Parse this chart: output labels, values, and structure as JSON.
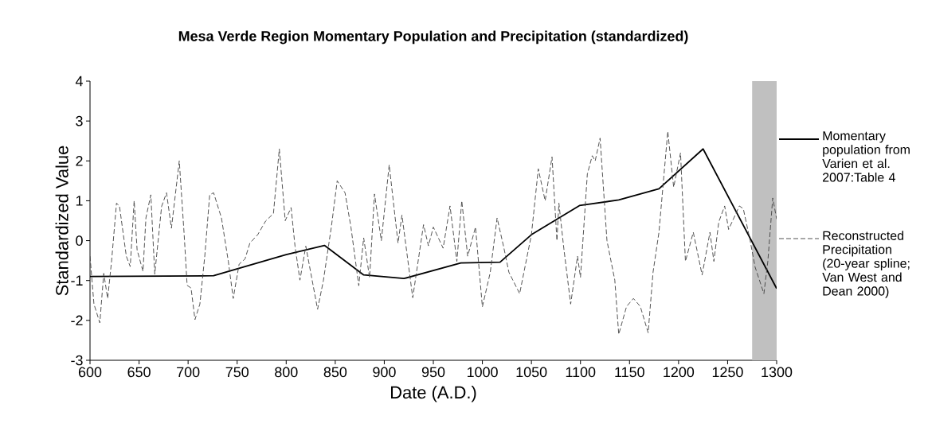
{
  "chart_data": {
    "type": "line",
    "title": "Mesa Verde Region Momentary Population and Precipitation (standardized)",
    "xlabel": "Date (A.D.)",
    "ylabel": "Standardized Value",
    "xlim": [
      600,
      1300
    ],
    "xticks": [
      600,
      650,
      700,
      750,
      800,
      850,
      900,
      950,
      1000,
      1050,
      1100,
      1150,
      1200,
      1250,
      1300
    ],
    "ylim": [
      -3,
      4
    ],
    "yticks": [
      -3,
      -2,
      -1,
      0,
      1,
      2,
      3,
      4
    ],
    "grid": false,
    "legend": "right",
    "marker": "none",
    "bands": [
      {
        "axis": "x",
        "from": 1275,
        "to": 1300,
        "color": "#c0c0c0"
      }
    ],
    "series": [
      {
        "name": "Momentary population from Varien et al. 2007:Table 4",
        "color": "#000000",
        "line_style": "solid",
        "x": [
          600,
          726,
          800,
          839,
          879,
          920,
          978,
          1018,
          1050,
          1099,
          1139,
          1180,
          1225,
          1300
        ],
        "values": [
          -0.9,
          -0.88,
          -0.35,
          -0.12,
          -0.86,
          -0.95,
          -0.56,
          -0.54,
          0.15,
          0.88,
          1.02,
          1.3,
          2.3,
          -1.2
        ]
      },
      {
        "name": "Reconstructed Precipitation (20-year spline; Van West and Dean 2000)",
        "color": "#404040",
        "line_style": "dashed",
        "x": [
          600,
          604,
          610,
          614,
          618,
          622,
          627,
          630,
          637,
          641,
          645,
          648,
          654,
          657,
          662,
          666,
          673,
          678,
          683,
          691,
          696,
          699,
          703,
          707,
          712,
          717,
          722,
          726,
          734,
          741,
          746,
          752,
          758,
          763,
          771,
          779,
          787,
          793,
          799,
          805,
          809,
          814,
          820,
          825,
          832,
          838,
          846,
          852,
          860,
          866,
          874,
          879,
          885,
          890,
          897,
          905,
          914,
          918,
          929,
          940,
          945,
          950,
          960,
          967,
          974,
          979,
          985,
          993,
          1000,
          1008,
          1015,
          1022,
          1027,
          1038,
          1050,
          1057,
          1064,
          1071,
          1076,
          1078,
          1083,
          1090,
          1097,
          1100,
          1107,
          1112,
          1115,
          1120,
          1127,
          1135,
          1139,
          1147,
          1154,
          1161,
          1169,
          1174,
          1180,
          1189,
          1195,
          1202,
          1207,
          1215,
          1224,
          1232,
          1236,
          1241,
          1247,
          1251,
          1262,
          1266,
          1273,
          1278,
          1287,
          1291,
          1296,
          1300
        ],
        "values": [
          -0.39,
          -1.59,
          -2.06,
          -0.82,
          -1.45,
          -0.51,
          0.94,
          0.87,
          -0.39,
          -0.65,
          1.0,
          -0.23,
          -0.77,
          0.57,
          1.15,
          -0.84,
          0.86,
          1.2,
          0.31,
          2.0,
          0.15,
          -1.12,
          -1.19,
          -1.98,
          -1.59,
          -0.39,
          1.15,
          1.2,
          0.57,
          -0.52,
          -1.45,
          -0.59,
          -0.46,
          -0.06,
          0.15,
          0.49,
          0.68,
          2.3,
          0.5,
          0.83,
          -0.14,
          -0.99,
          -0.14,
          -0.8,
          -1.72,
          -0.99,
          0.34,
          1.5,
          1.2,
          0.34,
          -1.13,
          0.07,
          -0.93,
          1.17,
          0.0,
          1.9,
          -0.06,
          0.64,
          -1.43,
          0.4,
          -0.13,
          0.34,
          -0.19,
          0.87,
          -0.52,
          1.0,
          -0.39,
          0.34,
          -1.66,
          -0.8,
          0.57,
          -0.19,
          -0.79,
          -1.33,
          0.15,
          1.8,
          1.0,
          2.1,
          0.0,
          0.94,
          -0.19,
          -1.59,
          -0.39,
          -0.92,
          1.67,
          2.13,
          2.0,
          2.57,
          0.0,
          -0.99,
          -2.35,
          -1.65,
          -1.45,
          -1.65,
          -2.31,
          -0.79,
          0.21,
          2.74,
          1.34,
          2.2,
          -0.52,
          0.21,
          -0.86,
          0.21,
          -0.52,
          0.47,
          0.87,
          0.28,
          0.87,
          0.8,
          0.0,
          -0.66,
          -1.33,
          -0.52,
          1.07,
          0.54
        ]
      }
    ]
  }
}
